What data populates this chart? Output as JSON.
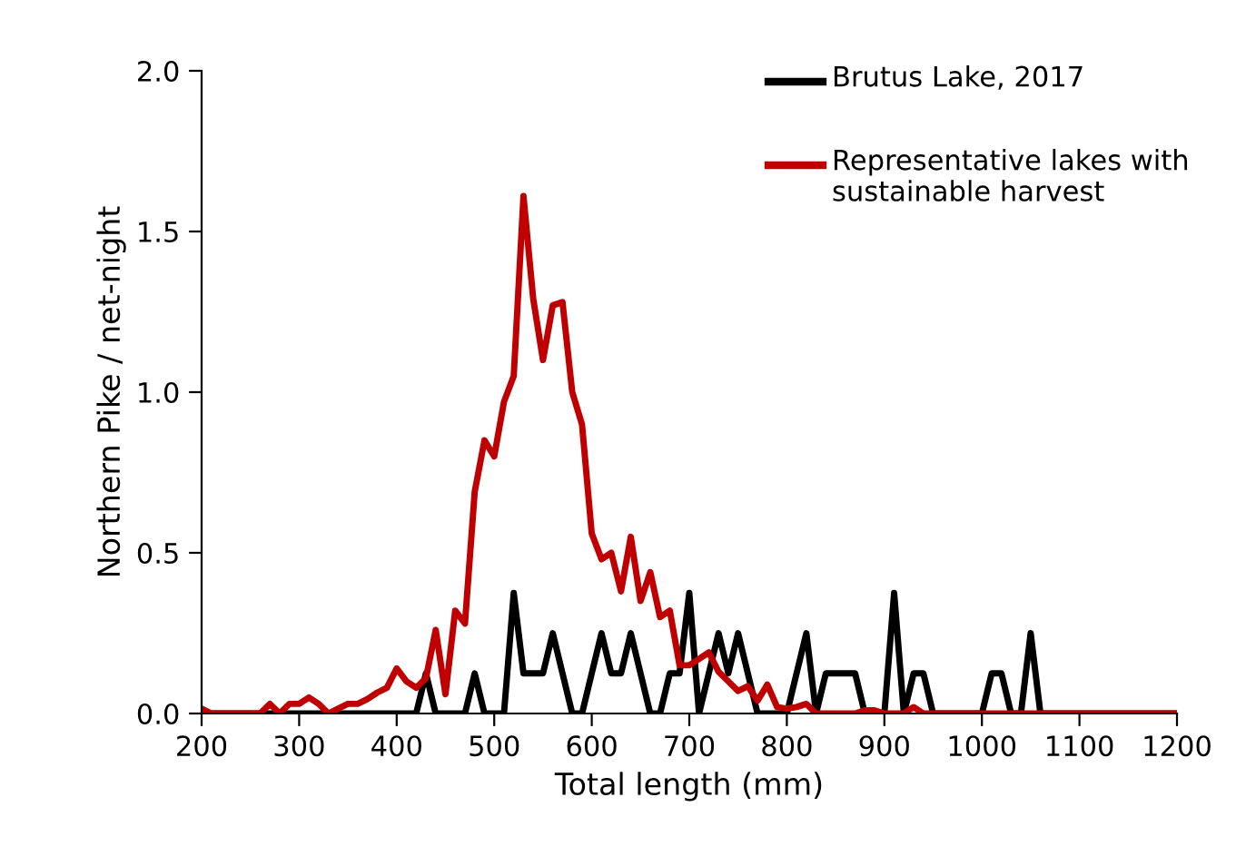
{
  "chart_data": {
    "type": "line",
    "xlabel": "Total length (mm)",
    "ylabel": "Northern Pike / net-night",
    "xlim": [
      200,
      1200
    ],
    "xticks": [
      200,
      300,
      400,
      500,
      600,
      700,
      800,
      900,
      1000,
      1100,
      1200
    ],
    "ylim": [
      0,
      2.0
    ],
    "yticks": [
      {
        "value": 0,
        "label": "0.0"
      },
      {
        "value": 0.5,
        "label": "0.5"
      },
      {
        "value": 1.0,
        "label": "1.0"
      },
      {
        "value": 1.5,
        "label": "1.5"
      },
      {
        "value": 2.0,
        "label": "2.0"
      }
    ],
    "x": [
      200,
      210,
      220,
      230,
      240,
      250,
      260,
      270,
      280,
      290,
      300,
      310,
      320,
      330,
      340,
      350,
      360,
      370,
      380,
      390,
      400,
      410,
      420,
      430,
      440,
      450,
      460,
      470,
      480,
      490,
      500,
      510,
      520,
      530,
      540,
      550,
      560,
      570,
      580,
      590,
      600,
      610,
      620,
      630,
      640,
      650,
      660,
      670,
      680,
      690,
      700,
      710,
      720,
      730,
      740,
      750,
      760,
      770,
      780,
      790,
      800,
      810,
      820,
      830,
      840,
      850,
      860,
      870,
      880,
      890,
      900,
      910,
      920,
      930,
      940,
      950,
      960,
      970,
      980,
      990,
      1000,
      1010,
      1020,
      1030,
      1040,
      1050,
      1060,
      1070,
      1080,
      1090,
      1100,
      1110,
      1120,
      1130,
      1140,
      1150,
      1160,
      1170,
      1180,
      1190,
      1200
    ],
    "series": [
      {
        "name": "Brutus Lake, 2017",
        "color": "#000000",
        "values": [
          0,
          0,
          0,
          0,
          0,
          0,
          0,
          0,
          0,
          0,
          0,
          0,
          0,
          0,
          0,
          0,
          0,
          0,
          0,
          0,
          0,
          0,
          0,
          0.125,
          0,
          0,
          0,
          0,
          0.125,
          0,
          0,
          0,
          0.375,
          0.125,
          0.125,
          0.125,
          0.25,
          0.125,
          0,
          0,
          0.125,
          0.25,
          0.125,
          0.125,
          0.25,
          0.125,
          0,
          0,
          0.125,
          0.125,
          0.375,
          0,
          0.125,
          0.25,
          0.125,
          0.25,
          0.125,
          0,
          0,
          0,
          0,
          0.125,
          0.25,
          0,
          0.125,
          0.125,
          0.125,
          0.125,
          0,
          0,
          0,
          0.375,
          0,
          0.125,
          0.125,
          0,
          0,
          0,
          0,
          0,
          0,
          0.125,
          0.125,
          0,
          0,
          0.25,
          0,
          0,
          0,
          0,
          0,
          0,
          0,
          0,
          0,
          0,
          0,
          0,
          0,
          0,
          0
        ]
      },
      {
        "name": "Representative lakes with sustainable harvest",
        "color": "#c00000",
        "values": [
          0.015,
          0,
          0,
          0,
          0,
          0,
          0,
          0.03,
          0,
          0.03,
          0.03,
          0.05,
          0.03,
          0,
          0.015,
          0.03,
          0.03,
          0.045,
          0.065,
          0.08,
          0.14,
          0.1,
          0.08,
          0.11,
          0.26,
          0.06,
          0.32,
          0.28,
          0.69,
          0.85,
          0.8,
          0.97,
          1.05,
          1.61,
          1.29,
          1.1,
          1.27,
          1.28,
          1.0,
          0.9,
          0.56,
          0.48,
          0.5,
          0.38,
          0.55,
          0.35,
          0.44,
          0.3,
          0.32,
          0.15,
          0.15,
          0.17,
          0.19,
          0.13,
          0.1,
          0.07,
          0.085,
          0.04,
          0.09,
          0.02,
          0.015,
          0.02,
          0.03,
          0,
          0,
          0,
          0,
          0,
          0.01,
          0.01,
          0,
          0,
          0,
          0.02,
          0,
          0,
          0,
          0,
          0,
          0,
          0,
          0,
          0,
          0,
          0,
          0,
          0,
          0,
          0,
          0,
          0,
          0,
          0,
          0,
          0,
          0,
          0,
          0,
          0,
          0,
          0
        ]
      }
    ],
    "legend": "top right",
    "grid": false,
    "marker": "none",
    "line_style": "solid"
  }
}
